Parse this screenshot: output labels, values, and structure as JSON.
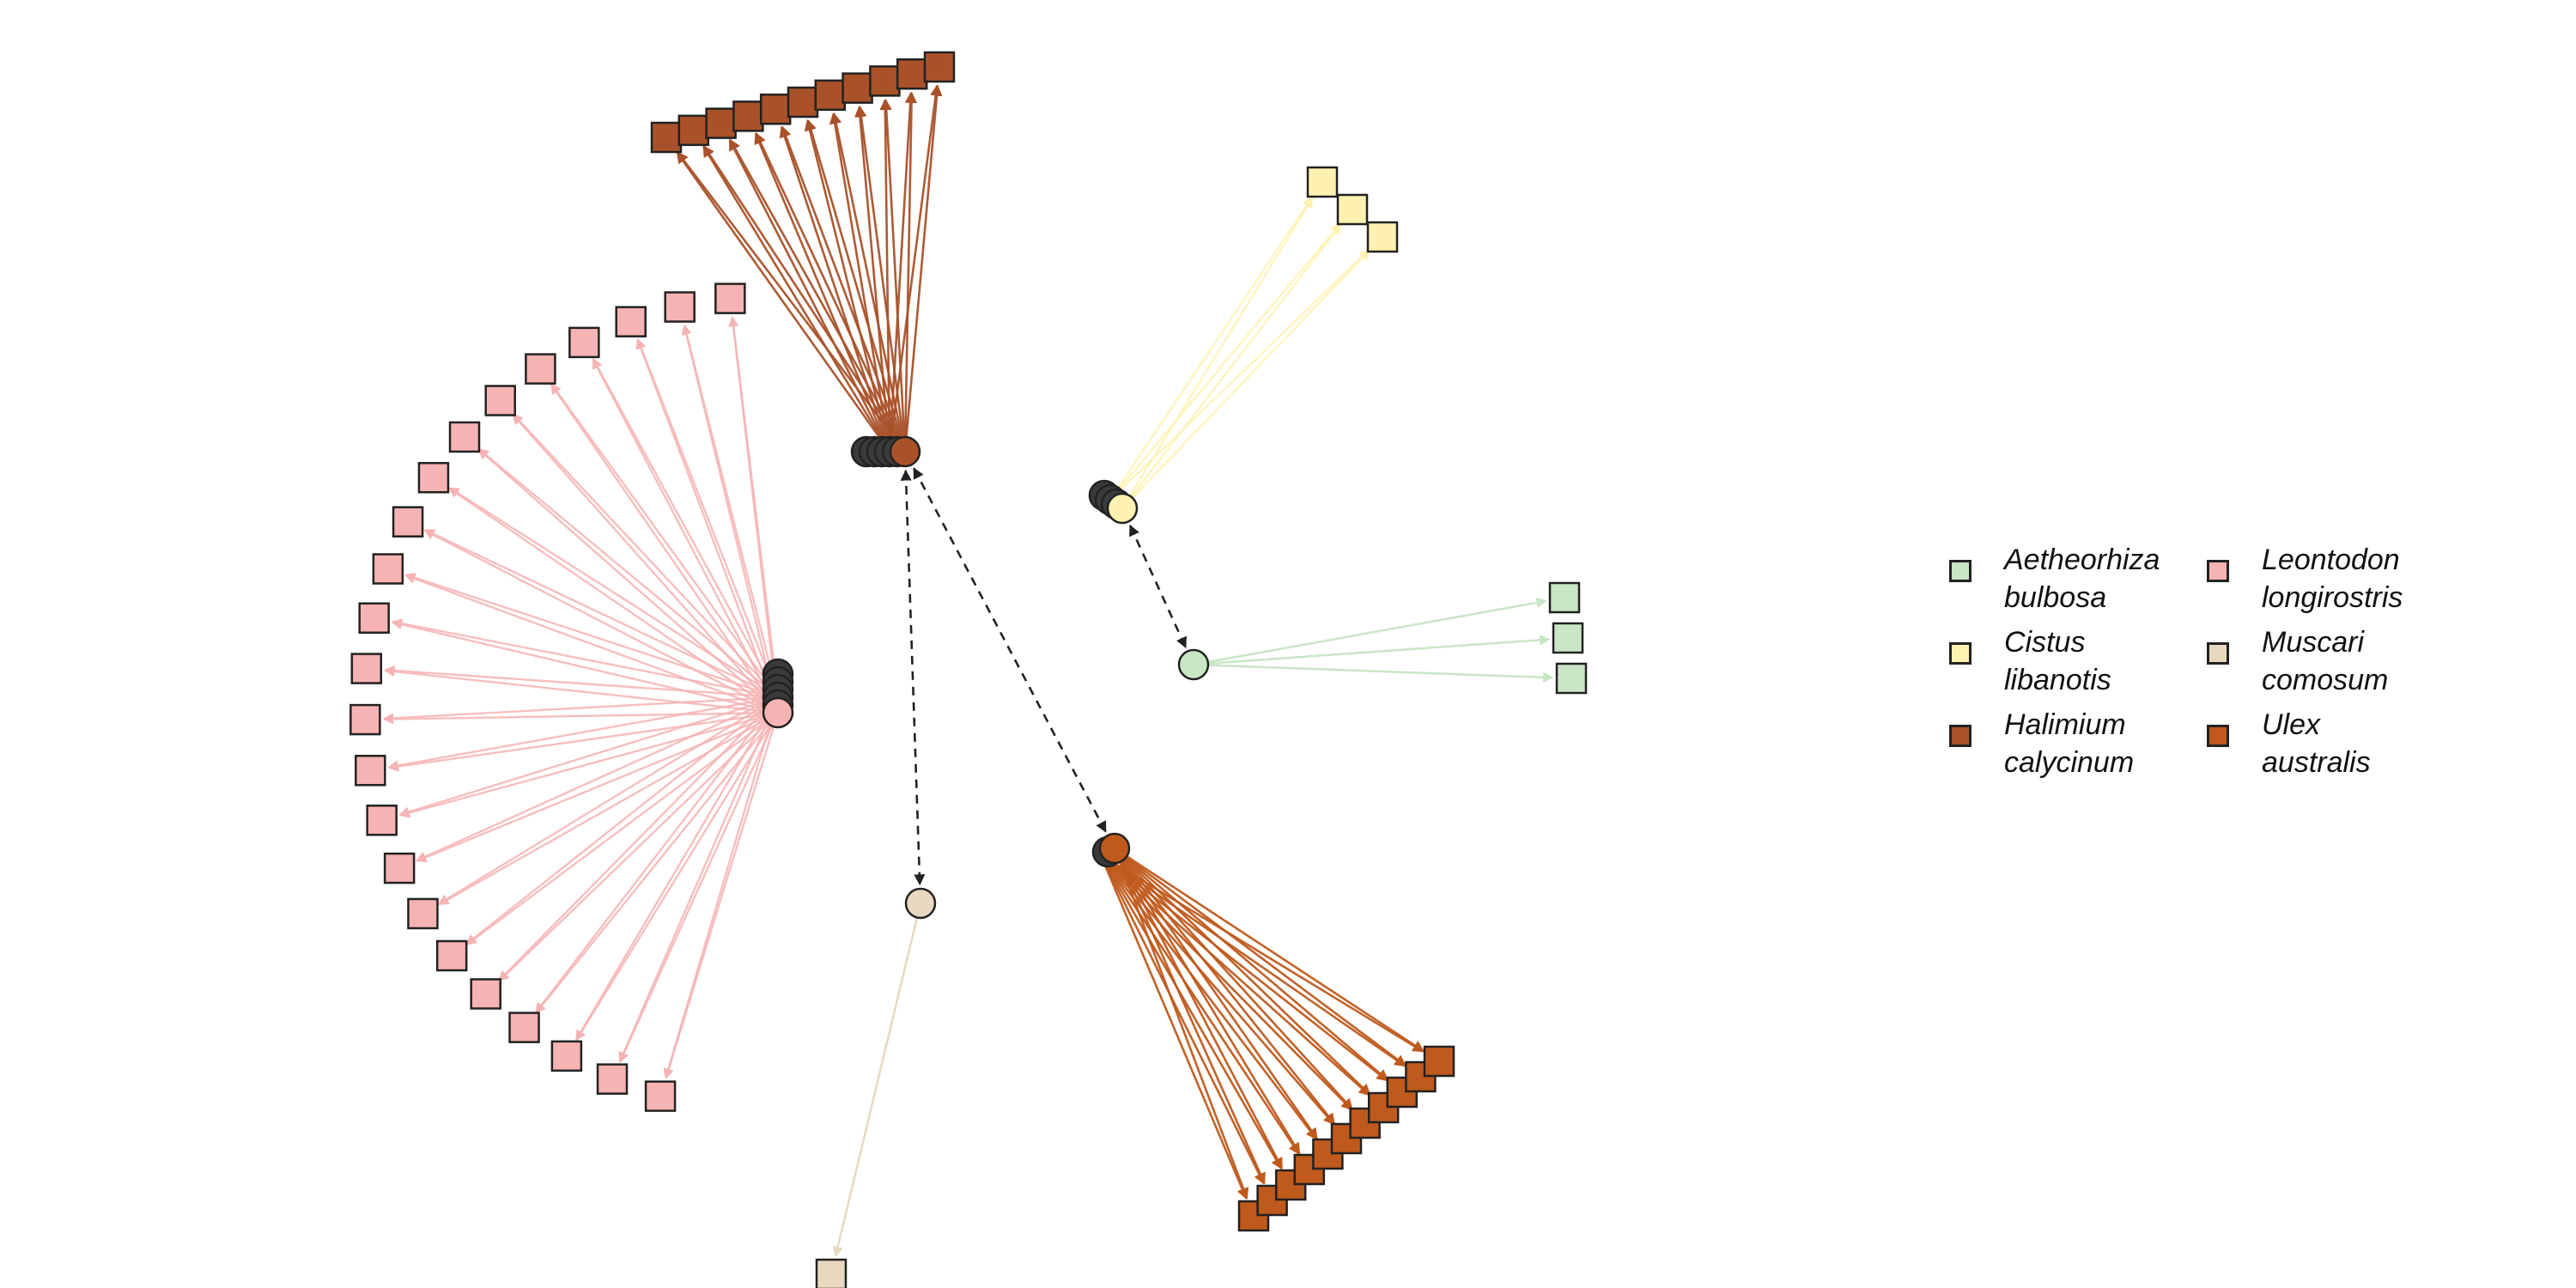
{
  "legend": {
    "items": [
      {
        "key": "aetheorhiza",
        "label": "Aetheorhiza\nbulbosa",
        "color": "#c8e6c4"
      },
      {
        "key": "cistus",
        "label": "Cistus\nlibanotis",
        "color": "#fff2b0"
      },
      {
        "key": "halimium",
        "label": "Halimium\ncalycinum",
        "color": "#a9522a"
      },
      {
        "key": "leontodon",
        "label": "Leontodon\nlongirostris",
        "color": "#f6b3b3"
      },
      {
        "key": "muscari",
        "label": "Muscari\ncomosum",
        "color": "#e8d8bf"
      },
      {
        "key": "ulex",
        "label": "Ulex\naustralis",
        "color": "#bf5a1c"
      }
    ]
  },
  "graph": {
    "clusters": [
      {
        "species": "halimium",
        "leaf_count": 11,
        "stacked_hubs": 6
      },
      {
        "species": "leontodon",
        "leaf_count": 23,
        "stacked_hubs": 6
      },
      {
        "species": "cistus",
        "leaf_count": 3,
        "stacked_hubs": 4
      },
      {
        "species": "aetheorhiza",
        "leaf_count": 3,
        "stacked_hubs": 1
      },
      {
        "species": "muscari",
        "leaf_count": 1,
        "stacked_hubs": 1
      },
      {
        "species": "ulex",
        "leaf_count": 11,
        "stacked_hubs": 2
      }
    ],
    "dashed_links": [
      {
        "from": "halimium",
        "to": "muscari"
      },
      {
        "from": "halimium",
        "to": "ulex"
      },
      {
        "from": "cistus",
        "to": "aetheorhiza"
      }
    ]
  }
}
